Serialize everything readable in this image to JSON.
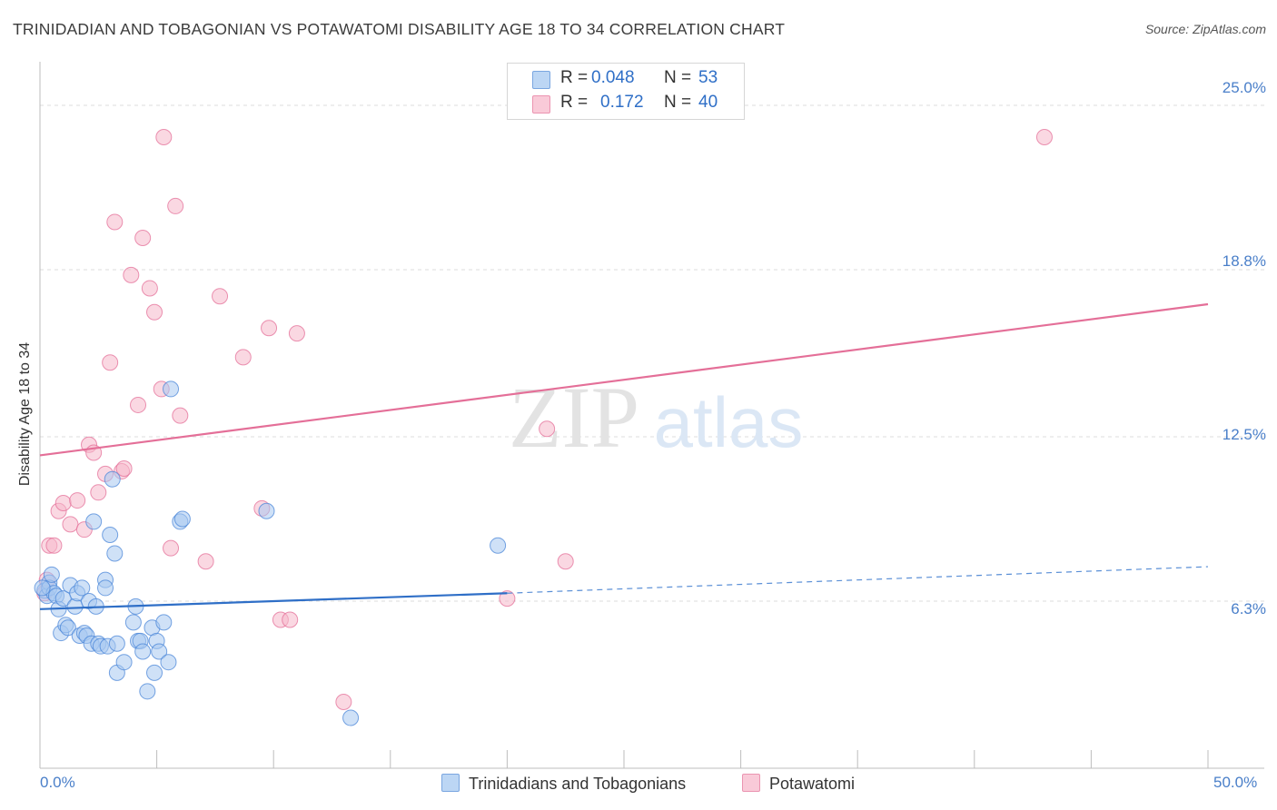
{
  "header": {
    "title": "TRINIDADIAN AND TOBAGONIAN VS POTAWATOMI DISABILITY AGE 18 TO 34 CORRELATION CHART",
    "source": "Source: ZipAtlas.com"
  },
  "watermark": {
    "zip": "ZIP",
    "atlas": "atlas"
  },
  "legend_top": {
    "rows": [
      {
        "r_label": "R =",
        "r_value": "0.048",
        "n_label": "N =",
        "n_value": "53",
        "color": "#a8c8f0"
      },
      {
        "r_label": "R =",
        "r_value": "0.172",
        "n_label": "N =",
        "n_value": "40",
        "color": "#f6b8cb"
      }
    ]
  },
  "legend_bottom": {
    "items": [
      {
        "label": "Trinidadians and Tobagonians",
        "color": "#a8c8f0"
      },
      {
        "label": "Potawatomi",
        "color": "#f6b8cb"
      }
    ]
  },
  "chart_data": {
    "type": "scatter",
    "title": "TRINIDADIAN AND TOBAGONIAN VS POTAWATOMI DISABILITY AGE 18 TO 34 CORRELATION CHART",
    "xlabel": "",
    "ylabel": "Disability Age 18 to 34",
    "xlim": [
      0,
      50
    ],
    "ylim": [
      0,
      26.3
    ],
    "x_tick_labels": [
      "0.0%",
      "50.0%"
    ],
    "y_tick_labels": [
      "6.3%",
      "12.5%",
      "18.8%",
      "25.0%"
    ],
    "y_tick_values": [
      6.3,
      12.5,
      18.8,
      25.0
    ],
    "grid": "horizontal dashed",
    "legend_placement": "top-center and bottom",
    "series": [
      {
        "name": "Trinidadians and Tobagonians",
        "color": "#4a86d8",
        "fill": "#a8c8f0",
        "r": 0.048,
        "n": 53,
        "trend": {
          "x0": 0,
          "y0": 6.0,
          "x1": 20,
          "y1": 6.6,
          "x_dashed_end": 50,
          "y_dashed_end": 7.6
        },
        "points": [
          [
            0.2,
            6.7
          ],
          [
            0.3,
            6.5
          ],
          [
            0.4,
            7.0
          ],
          [
            0.4,
            6.8
          ],
          [
            0.5,
            7.3
          ],
          [
            0.6,
            6.6
          ],
          [
            0.7,
            6.5
          ],
          [
            0.8,
            6.0
          ],
          [
            0.9,
            5.1
          ],
          [
            1.0,
            6.4
          ],
          [
            1.1,
            5.4
          ],
          [
            1.2,
            5.3
          ],
          [
            1.3,
            6.9
          ],
          [
            1.5,
            6.1
          ],
          [
            1.6,
            6.6
          ],
          [
            1.7,
            5.0
          ],
          [
            1.8,
            6.8
          ],
          [
            1.9,
            5.1
          ],
          [
            2.0,
            5.0
          ],
          [
            2.1,
            6.3
          ],
          [
            2.2,
            4.7
          ],
          [
            2.3,
            9.3
          ],
          [
            2.4,
            6.1
          ],
          [
            2.5,
            4.7
          ],
          [
            2.6,
            4.6
          ],
          [
            2.8,
            7.1
          ],
          [
            2.8,
            6.8
          ],
          [
            2.9,
            4.6
          ],
          [
            3.0,
            8.8
          ],
          [
            3.1,
            10.9
          ],
          [
            3.2,
            8.1
          ],
          [
            3.3,
            4.7
          ],
          [
            3.3,
            3.6
          ],
          [
            3.6,
            4.0
          ],
          [
            4.0,
            5.5
          ],
          [
            4.1,
            6.1
          ],
          [
            4.2,
            4.8
          ],
          [
            4.3,
            4.8
          ],
          [
            4.4,
            4.4
          ],
          [
            4.6,
            2.9
          ],
          [
            4.8,
            5.3
          ],
          [
            4.9,
            3.6
          ],
          [
            5.0,
            4.8
          ],
          [
            5.1,
            4.4
          ],
          [
            5.3,
            5.5
          ],
          [
            5.5,
            4.0
          ],
          [
            5.6,
            14.3
          ],
          [
            6.0,
            9.3
          ],
          [
            6.1,
            9.4
          ],
          [
            9.7,
            9.7
          ],
          [
            13.3,
            1.9
          ],
          [
            19.6,
            8.4
          ],
          [
            0.1,
            6.8
          ]
        ]
      },
      {
        "name": "Potawatomi",
        "color": "#e46f98",
        "fill": "#f6b8cb",
        "r": 0.172,
        "n": 40,
        "trend": {
          "x0": 0,
          "y0": 11.8,
          "x1": 50,
          "y1": 17.5
        },
        "points": [
          [
            0.3,
            7.1
          ],
          [
            0.4,
            8.4
          ],
          [
            0.6,
            8.4
          ],
          [
            0.8,
            9.7
          ],
          [
            1.0,
            10.0
          ],
          [
            1.3,
            9.2
          ],
          [
            1.6,
            10.1
          ],
          [
            1.9,
            9.0
          ],
          [
            2.1,
            12.2
          ],
          [
            2.3,
            11.9
          ],
          [
            2.5,
            10.4
          ],
          [
            2.8,
            11.1
          ],
          [
            3.0,
            15.3
          ],
          [
            3.2,
            20.6
          ],
          [
            3.5,
            11.2
          ],
          [
            3.6,
            11.3
          ],
          [
            3.9,
            18.6
          ],
          [
            4.2,
            13.7
          ],
          [
            4.4,
            20.0
          ],
          [
            4.7,
            18.1
          ],
          [
            4.9,
            17.2
          ],
          [
            5.2,
            14.3
          ],
          [
            5.3,
            23.8
          ],
          [
            5.6,
            8.3
          ],
          [
            5.8,
            21.2
          ],
          [
            6.0,
            13.3
          ],
          [
            7.1,
            7.8
          ],
          [
            7.7,
            17.8
          ],
          [
            8.7,
            15.5
          ],
          [
            9.5,
            9.8
          ],
          [
            9.8,
            16.6
          ],
          [
            10.3,
            5.6
          ],
          [
            10.7,
            5.6
          ],
          [
            11.0,
            16.4
          ],
          [
            13.0,
            2.5
          ],
          [
            21.7,
            12.8
          ],
          [
            22.5,
            7.8
          ],
          [
            20.0,
            6.4
          ],
          [
            43.0,
            23.8
          ],
          [
            0.2,
            6.6
          ]
        ]
      }
    ]
  }
}
